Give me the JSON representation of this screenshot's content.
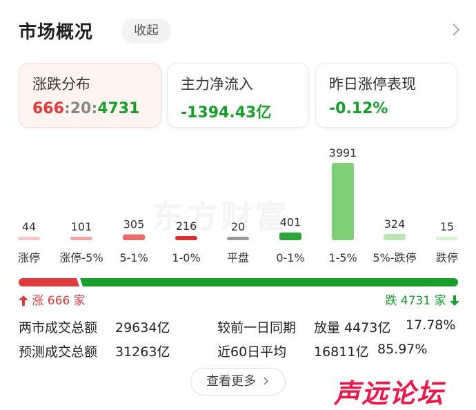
{
  "header": {
    "title": "市场概况",
    "collapse_label": "收起"
  },
  "cards": [
    {
      "label": "涨跌分布",
      "up": "666",
      "sep1": ":",
      "flat": "20",
      "sep2": ":",
      "down": "4731"
    },
    {
      "label": "主力净流入",
      "value": "-1394.43亿"
    },
    {
      "label": "昨日涨停表现",
      "value": "-0.12%"
    }
  ],
  "watermark": "东方财富",
  "chart_data": {
    "type": "bar",
    "categories": [
      "涨停",
      "涨停-5%",
      "5-1%",
      "1-0%",
      "平盘",
      "0-1%",
      "1-5%",
      "5%-跌停",
      "跌停"
    ],
    "values": [
      44,
      101,
      305,
      216,
      20,
      401,
      3991,
      324,
      15
    ],
    "value_labels": [
      "44",
      "101",
      "305",
      "216",
      "20",
      "401",
      "3991",
      "324",
      "15"
    ],
    "colors": [
      "#f7c6c6",
      "#f2a0a0",
      "#e86a6a",
      "#d92f2f",
      "#9a9a9a",
      "#2fa43a",
      "#7fd074",
      "#b9e6b2",
      "#d7f0d2"
    ],
    "label_colors": [
      "#e03a3a",
      "#e03a3a",
      "#e03a3a",
      "#e03a3a",
      "#333333",
      "#16a02a",
      "#16a02a",
      "#16a02a",
      "#16a02a"
    ],
    "category_colors": [
      "#e03a3a",
      "#333333",
      "#333333",
      "#333333",
      "#333333",
      "#333333",
      "#333333",
      "#333333",
      "#16a02a"
    ]
  },
  "progress": {
    "up_text": "涨 666 家",
    "down_text": "跌 4731 家",
    "up_color": "#e03a3a",
    "down_color": "#16a02a"
  },
  "stats": {
    "turnover_label": "两市成交总额",
    "turnover_value": "29634亿",
    "forecast_label": "预测成交总额",
    "forecast_value": "31263亿",
    "prev_day_label": "较前一日同期",
    "prev_day_change": "放量 4473亿",
    "prev_day_pct": "17.78%",
    "avg60_label": "近60日平均",
    "avg60_value": "16811亿",
    "avg60_pct": "85.97%"
  },
  "more_button": "查看更多",
  "forum_logo": "声远论坛"
}
